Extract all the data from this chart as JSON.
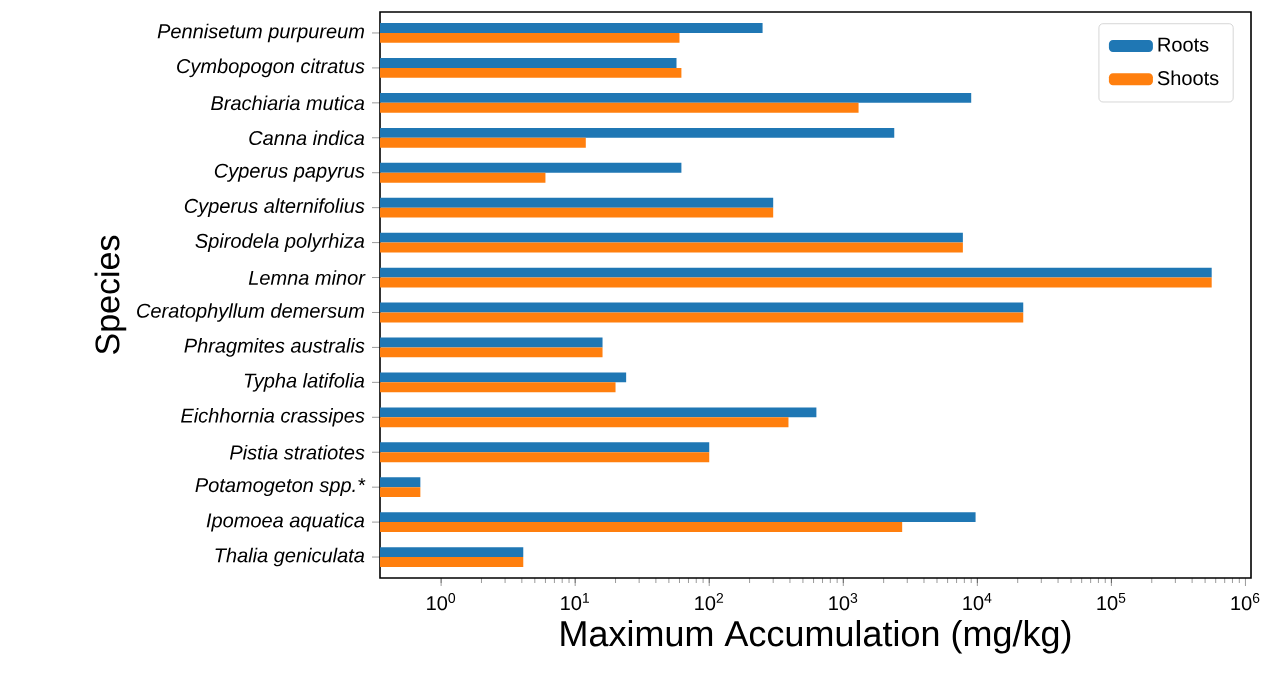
{
  "chart_data": {
    "type": "bar",
    "orientation": "horizontal",
    "log": "x",
    "xlabel": "Maximum Accumulation (mg/kg)",
    "ylabel": "Species",
    "categories": [
      "Pennisetum purpureum",
      "Cymbopogon citratus",
      "Brachiaria mutica",
      "Canna indica",
      "Cyperus papyrus",
      "Cyperus alternifolius",
      "Spirodela polyrhiza",
      "Lemna minor",
      "Ceratophyllum demersum",
      "Phragmites australis",
      "Typha latifolia",
      "Eichhornia crassipes",
      "Pistia stratiotes",
      "Potamogeton spp.*",
      "Ipomoea aquatica",
      "Thalia geniculata"
    ],
    "series": [
      {
        "name": "Roots",
        "color": "#1f77b4",
        "values": [
          250,
          57,
          9000,
          2400,
          62,
          300,
          7800,
          560000,
          22000,
          16,
          24,
          630,
          100,
          0.7,
          9700,
          4.1
        ]
      },
      {
        "name": "Shoots",
        "color": "#ff7f0e",
        "values": [
          60,
          62,
          1300,
          12,
          6,
          300,
          7800,
          560000,
          22000,
          16,
          20,
          390,
          100,
          0.7,
          2750,
          4.1
        ]
      }
    ],
    "xlim": [
      0.35,
      1100000
    ],
    "xticks": [
      {
        "value": 1,
        "label": "10$^{0}$"
      },
      {
        "value": 10,
        "label": "10$^{1}$"
      },
      {
        "value": 100,
        "label": "10$^{2}$"
      },
      {
        "value": 1000,
        "label": "10$^{3}$"
      },
      {
        "value": 10000,
        "label": "10$^{4}$"
      },
      {
        "value": 100000,
        "label": "10$^{5}$"
      },
      {
        "value": 1000000,
        "label": "10$^{6}$"
      }
    ],
    "legend": "top right",
    "grid": false
  }
}
